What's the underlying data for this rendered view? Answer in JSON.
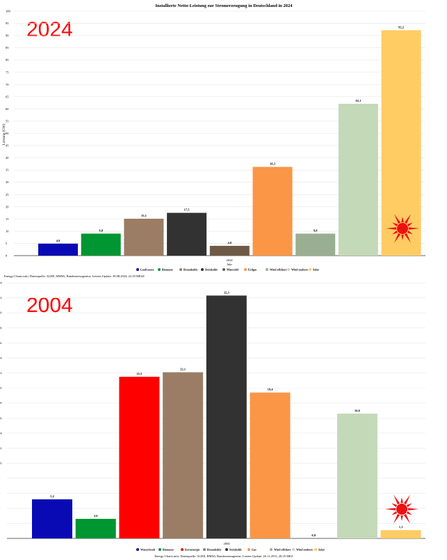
{
  "chart_data": [
    {
      "type": "bar",
      "title": "Installierte Netto-Leistung zur Stromerzeugung in Deutschland in 2024",
      "year_label": "2024",
      "xlabel": "Jahr",
      "ylabel": "Leistung (GW)",
      "category_label": "2024",
      "ylim": [
        0,
        100
      ],
      "yticks": [
        0,
        5,
        10,
        15,
        20,
        25,
        30,
        35,
        40,
        45,
        50,
        55,
        60,
        65,
        70,
        75,
        80,
        85,
        90,
        95,
        100
      ],
      "grid": true,
      "legend_position": "bottom",
      "series": [
        {
          "name": "Laufwasser",
          "value": 4.9,
          "label": "4,9",
          "color": "#0a0ab4"
        },
        {
          "name": "Biomasse",
          "value": 9.0,
          "label": "9,0",
          "color": "#009632"
        },
        {
          "name": "Braunkohle",
          "value": 15.1,
          "label": "15,1",
          "color": "#9a7d64"
        },
        {
          "name": "Steinkohle",
          "value": 17.5,
          "label": "17,5",
          "color": "#323232"
        },
        {
          "name": "Mineralöl",
          "value": 4.0,
          "label": "4,0",
          "color": "#6e5a46"
        },
        {
          "name": "Erdgas",
          "value": 36.3,
          "label": "36,3",
          "color": "#fa9646"
        },
        {
          "name": "Wind offshore",
          "value": 9.0,
          "label": "9,0",
          "color": "#9aaf91"
        },
        {
          "name": "Wind onshore",
          "value": 62.1,
          "label": "62,1",
          "color": "#c4d9b8"
        },
        {
          "name": "Solar",
          "value": 92.2,
          "label": "92,2",
          "color": "#ffcc64"
        }
      ],
      "source": "Energy-Charts.info; Datenquelle: AGEE, BMWi, Bundesnetzagentur; Letztes Update: 30.08.2024, 22:18 MESZ"
    },
    {
      "type": "bar",
      "year_label": "2004",
      "category_label": "2004",
      "ylim": [
        0,
        34
      ],
      "yticks": [
        0,
        2,
        4,
        6,
        8,
        10,
        12,
        14,
        16,
        18,
        20,
        22,
        24,
        26,
        28,
        30,
        32,
        34
      ],
      "grid": true,
      "legend_position": "bottom",
      "series": [
        {
          "name": "Wasserkraft",
          "value": 5.2,
          "label": "5,2",
          "color": "#0a0ab4"
        },
        {
          "name": "Biomasse",
          "value": 2.6,
          "label": "2,6",
          "color": "#009632"
        },
        {
          "name": "Kernenergie",
          "value": 21.5,
          "label": "21,5",
          "color": "#ff0000"
        },
        {
          "name": "Braunkohle",
          "value": 22.1,
          "label": "22,1",
          "color": "#9a7d64"
        },
        {
          "name": "Steinkohle",
          "value": 32.3,
          "label": "32,3",
          "color": "#323232"
        },
        {
          "name": "Gas",
          "value": 19.4,
          "label": "19,4",
          "color": "#fa9646"
        },
        {
          "name": "Wind offshore",
          "value": 0.0,
          "label": "0,0",
          "color": "#9aaf91"
        },
        {
          "name": "Wind onshore",
          "value": 16.6,
          "label": "16,6",
          "color": "#c4d9b8"
        },
        {
          "name": "Solar",
          "value": 1.1,
          "label": "1,1",
          "color": "#ffcc64"
        }
      ],
      "source": "Energy-Charts.info; Datenquelle: AGEE, BMWi, Bundesnetzagentur; Letztes Update: 26.11.2013, 20:25 MEZ"
    }
  ],
  "colors": {
    "grid": "#e6e6e6",
    "axis": "#333333",
    "year_label": "#ff0000",
    "sun": "#ee1111"
  },
  "icons": [
    "sun-icon"
  ]
}
